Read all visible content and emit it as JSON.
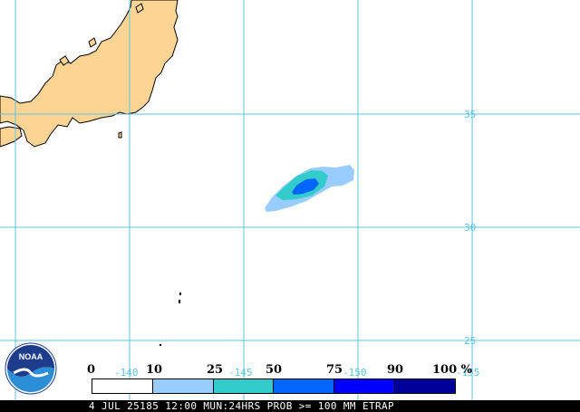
{
  "grid": {
    "lat_labels": [
      "35",
      "30",
      "25"
    ],
    "lon_labels": [
      "-140",
      "-145",
      "-150",
      "-155"
    ]
  },
  "legend": {
    "ticks": [
      "0",
      "10",
      "25",
      "50",
      "75",
      "90",
      "100 %"
    ],
    "colors": [
      "#ffffff",
      "#99ccff",
      "#33cccc",
      "#0066ff",
      "#0000ff",
      "#000099"
    ]
  },
  "footer": {
    "text": "4 JUL 25185 12:00 MUN:24HRS PROB >= 100 MM ETRAP"
  },
  "logo": {
    "text": "NOAA"
  },
  "colors": {
    "land": "#fcd494",
    "grid": "#5cc6de",
    "prob_10": "#99ccff",
    "prob_25": "#33cccc",
    "prob_50": "#0066ff"
  }
}
